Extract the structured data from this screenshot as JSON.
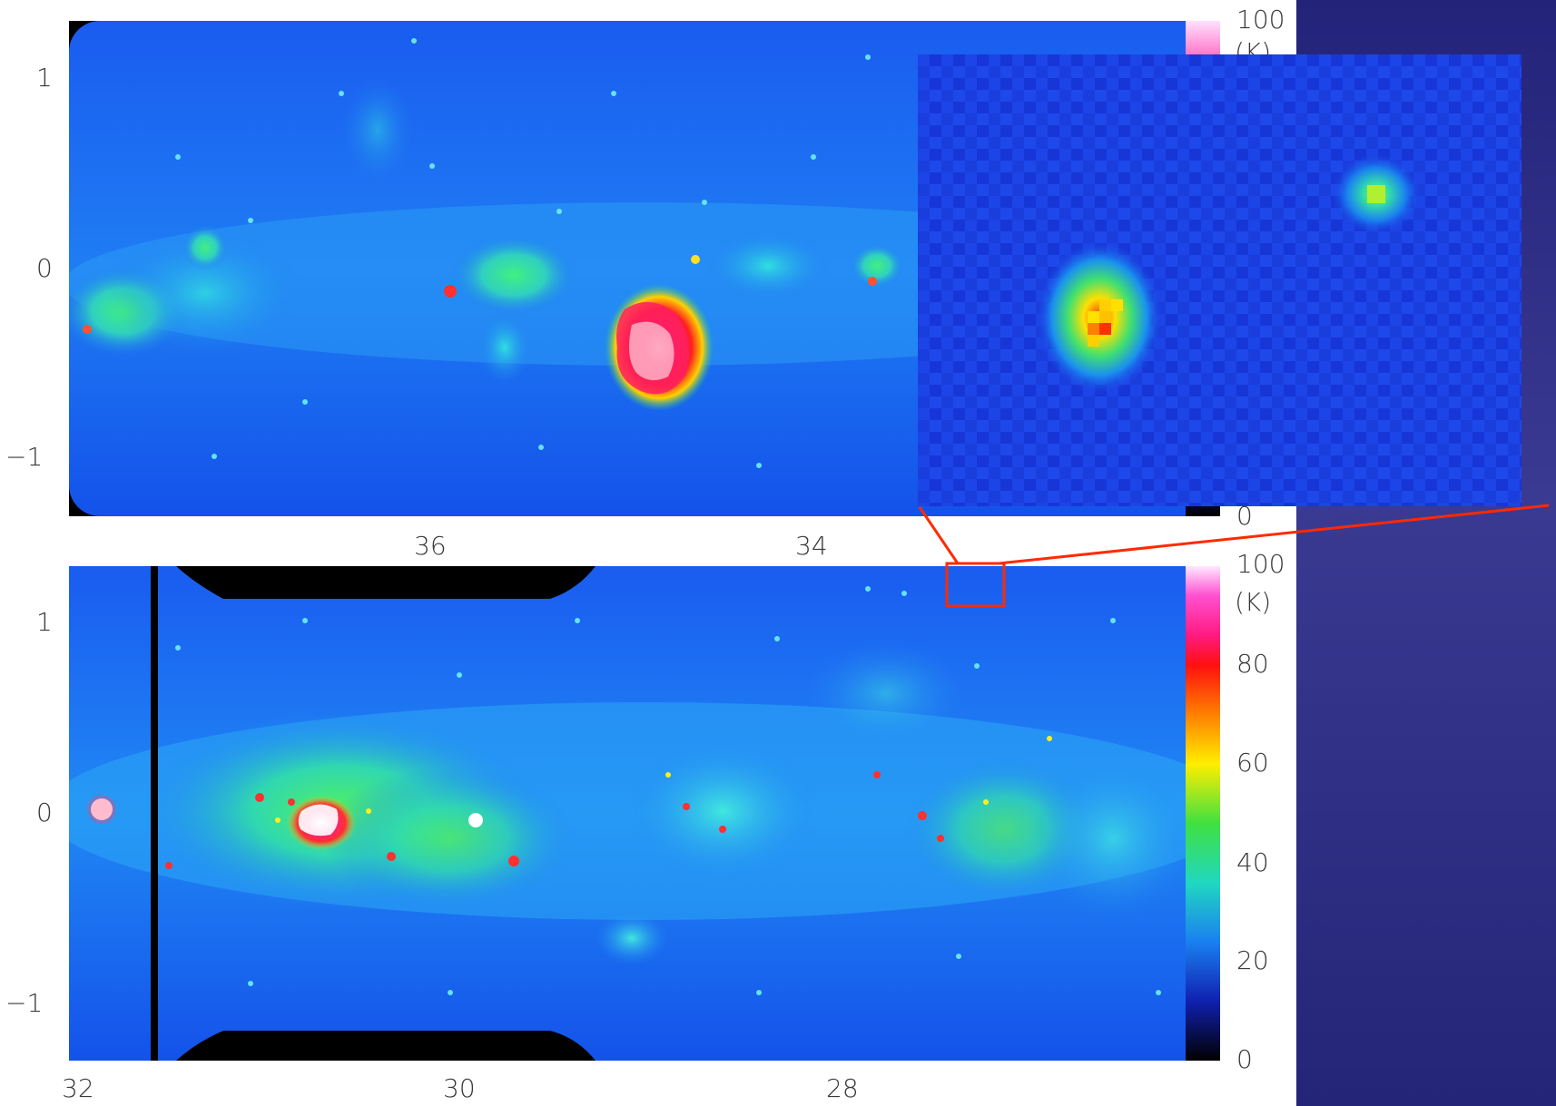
{
  "top_panel": {
    "y_ticks": [
      "1",
      "0",
      "−1"
    ],
    "x_ticks": [
      "36",
      "34"
    ],
    "colorbar": {
      "max_label": "100",
      "unit_label": "(K)",
      "min_label": "0"
    }
  },
  "bottom_panel": {
    "y_ticks": [
      "1",
      "0",
      "−1"
    ],
    "x_ticks": [
      "32",
      "30",
      "28"
    ],
    "colorbar": {
      "labels": [
        "100",
        "(K)",
        "80",
        "60",
        "40",
        "20",
        "0"
      ],
      "range": [
        0,
        100
      ]
    }
  },
  "colors": {
    "background_blue": "#2c2c86",
    "map_blue": "#1446ee",
    "highlight_box": "#ff2a00",
    "mask": "#000000"
  },
  "icons": {
    "zoom_box": "red-rectangle",
    "connector": "red-lines"
  }
}
